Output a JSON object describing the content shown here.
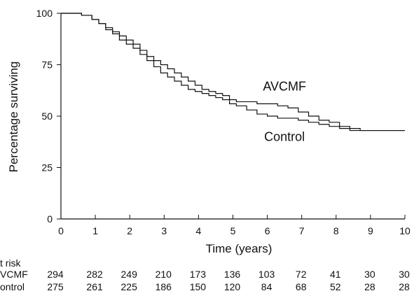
{
  "chart_data": {
    "type": "line",
    "step": true,
    "xlabel": "Time (years)",
    "ylabel": "Percentage surviving",
    "xlim": [
      0,
      10
    ],
    "ylim": [
      0,
      100
    ],
    "xticks": [
      0,
      1,
      2,
      3,
      4,
      5,
      6,
      7,
      8,
      9,
      10
    ],
    "yticks": [
      0,
      25,
      50,
      75,
      100
    ],
    "grid": false,
    "series": [
      {
        "name": "AVCMF",
        "x": [
          0,
          0.3,
          0.6,
          0.9,
          1.1,
          1.3,
          1.5,
          1.7,
          1.9,
          2.1,
          2.3,
          2.5,
          2.7,
          2.9,
          3.1,
          3.3,
          3.5,
          3.7,
          3.9,
          4.1,
          4.3,
          4.5,
          4.7,
          4.9,
          5.1,
          5.4,
          5.7,
          6.0,
          6.3,
          6.6,
          6.9,
          7.2,
          7.5,
          7.8,
          8.1,
          8.4,
          8.7,
          10
        ],
        "y": [
          100,
          100,
          99,
          97,
          95,
          93,
          91,
          89,
          87,
          85,
          82,
          79,
          77,
          75,
          73,
          71,
          69,
          67,
          65,
          63,
          62,
          61,
          60,
          58,
          57,
          57,
          56,
          56,
          55,
          54,
          52,
          50,
          48,
          47,
          45,
          44,
          43,
          43
        ]
      },
      {
        "name": "Control",
        "x": [
          0,
          0.3,
          0.6,
          0.9,
          1.1,
          1.3,
          1.5,
          1.7,
          1.9,
          2.1,
          2.3,
          2.5,
          2.7,
          2.9,
          3.1,
          3.3,
          3.5,
          3.7,
          3.9,
          4.1,
          4.3,
          4.5,
          4.7,
          4.9,
          5.1,
          5.4,
          5.7,
          6.0,
          6.3,
          6.6,
          6.9,
          7.2,
          7.5,
          7.8,
          8.1,
          8.4,
          8.7,
          10
        ],
        "y": [
          100,
          100,
          99,
          97,
          95,
          92,
          90,
          87,
          85,
          83,
          80,
          77,
          74,
          71,
          69,
          67,
          65,
          63,
          62,
          61,
          60,
          59,
          58,
          56,
          55,
          53,
          51,
          50,
          49,
          49,
          48,
          47,
          46,
          45,
          44,
          43,
          43,
          43
        ]
      }
    ],
    "at_risk": {
      "label": "t risk",
      "times": [
        0,
        1,
        2,
        3,
        4,
        5,
        6,
        7,
        8,
        9,
        10
      ],
      "rows": [
        {
          "label": "VCMF",
          "values": [
            "294",
            "282",
            "249",
            "210",
            "173",
            "136",
            "103",
            "72",
            "41",
            "30",
            "30"
          ]
        },
        {
          "label": "ontrol",
          "values": [
            "275",
            "261",
            "225",
            "186",
            "150",
            "120",
            "84",
            "68",
            "52",
            "28",
            "28"
          ]
        }
      ]
    }
  },
  "colors": {
    "line": "#111111",
    "background": "#ffffff"
  }
}
